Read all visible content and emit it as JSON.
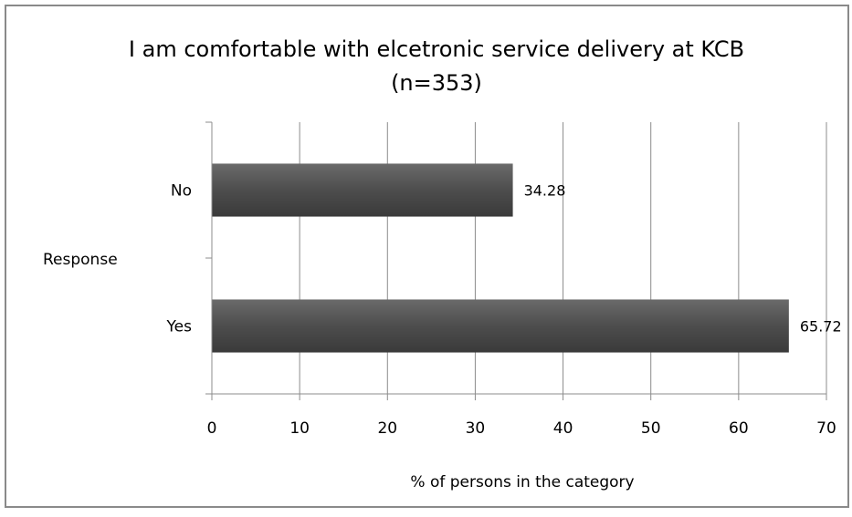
{
  "chart_data": {
    "type": "bar",
    "orientation": "horizontal",
    "title": "I am comfortable with elcetronic service delivery at KCB",
    "subtitle": "(n=353)",
    "categories": [
      "No",
      "Yes"
    ],
    "values": [
      34.28,
      65.72
    ],
    "data_labels": [
      "34.28",
      "65.72"
    ],
    "xlabel": "% of persons in the category",
    "ylabel": "Response",
    "xlim": [
      0,
      70
    ],
    "xticks": [
      0,
      10,
      20,
      30,
      40,
      50,
      60,
      70
    ],
    "xtick_labels": [
      "0",
      "10",
      "20",
      "30",
      "40",
      "50",
      "60",
      "70"
    ],
    "grid": true,
    "legend": "none",
    "bar_color": "#4d4d4d"
  }
}
